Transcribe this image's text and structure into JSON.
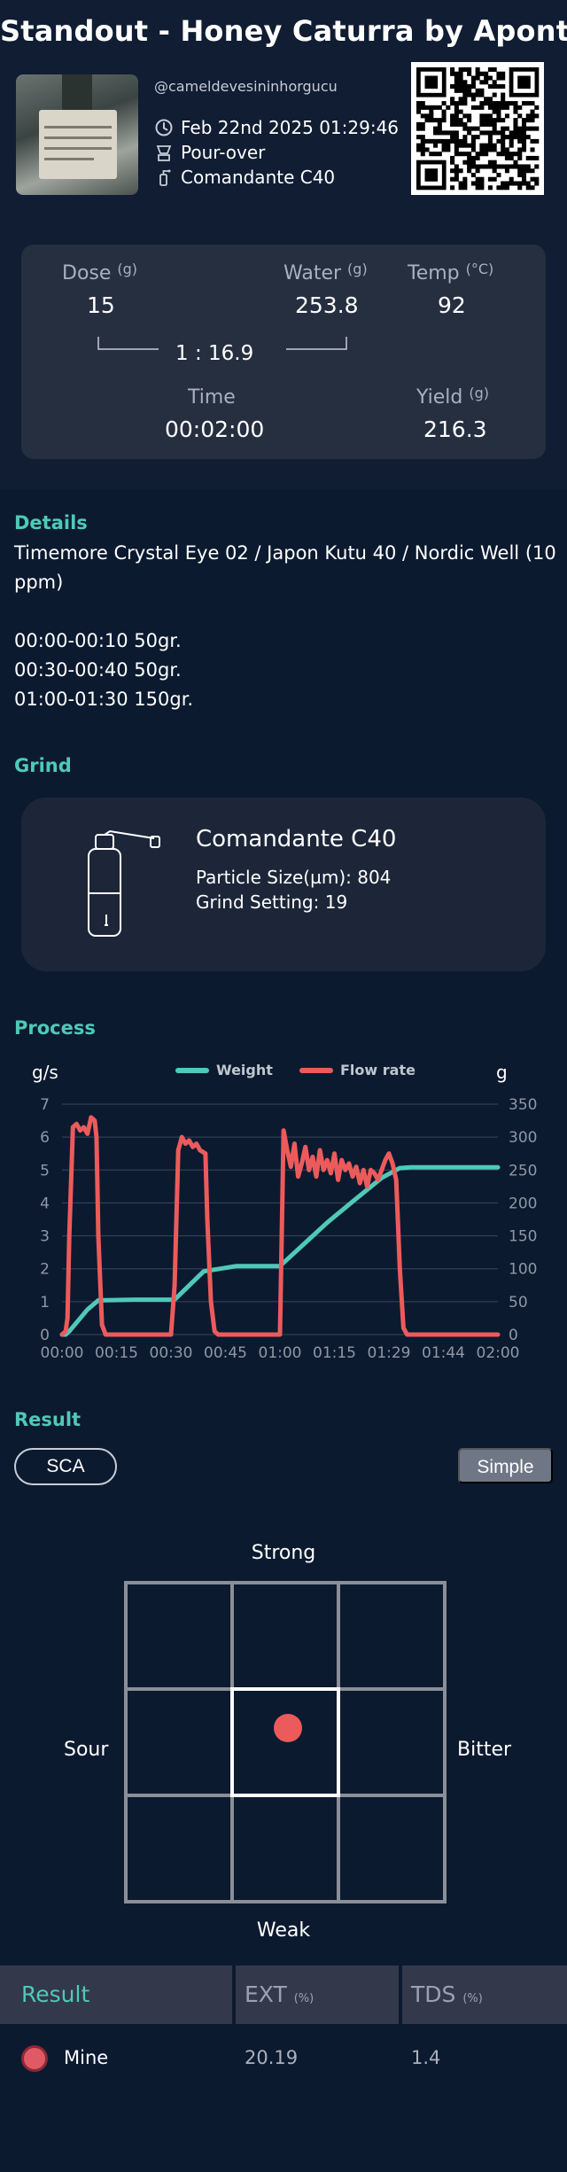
{
  "header": {
    "title": "Standout - Honey Caturra by Aponte",
    "username": "@cameldevesininhorgucu",
    "datetime": "Feb 22nd 2025 01:29:46",
    "method": "Pour-over",
    "grinder": "Comandante C40"
  },
  "recipe": {
    "dose_label": "Dose",
    "dose_unit": "(g)",
    "dose_value": "15",
    "water_label": "Water",
    "water_unit": "(g)",
    "water_value": "253.8",
    "temp_label": "Temp",
    "temp_unit": "(°C)",
    "temp_value": "92",
    "ratio": "1 : 16.9",
    "time_label": "Time",
    "time_value": "00:02:00",
    "yield_label": "Yield",
    "yield_unit": "(g)",
    "yield_value": "216.3"
  },
  "details": {
    "title": "Details",
    "text": "Timemore Crystal Eye 02 / Japon Kutu 40 / Nordic Well (10 ppm)\n\n00:00-00:10 50gr.\n00:30-00:40 50gr.\n01:00-01:30 150gr."
  },
  "grind": {
    "title": "Grind",
    "name": "Comandante C40",
    "particle_size": "Particle Size(µm): 804",
    "grind_setting": "Grind Setting: 19"
  },
  "process": {
    "title": "Process",
    "chart_data": {
      "type": "line",
      "left_axis_label": "g/s",
      "right_axis_label": "g",
      "left_ticks": [
        "0",
        "1",
        "2",
        "3",
        "4",
        "5",
        "6",
        "7"
      ],
      "right_ticks": [
        "0",
        "50",
        "100",
        "150",
        "200",
        "250",
        "300",
        "350"
      ],
      "x_ticks": [
        "00:00",
        "00:15",
        "00:30",
        "00:45",
        "01:00",
        "01:15",
        "01:29",
        "01:44",
        "02:00"
      ],
      "ylim_left": [
        0,
        7
      ],
      "ylim_right": [
        0,
        350
      ],
      "xlim_seconds": [
        0,
        120
      ],
      "grid": true,
      "legend_position": "top-center",
      "series": [
        {
          "name": "Weight",
          "axis": "right",
          "color": "#4fc9b8",
          "x": [
            0,
            1,
            2,
            7,
            10,
            20,
            31,
            39,
            48,
            55,
            60,
            73,
            80,
            88,
            93,
            96,
            100,
            105,
            110,
            115,
            120
          ],
          "y": [
            0,
            0,
            5,
            38,
            52,
            53,
            53,
            96,
            104,
            104,
            104,
            170,
            202,
            238,
            253,
            254,
            254,
            254,
            254,
            254,
            254
          ]
        },
        {
          "name": "Flow rate",
          "axis": "left",
          "color": "#ec5b5b",
          "x": [
            0,
            1,
            1.5,
            2,
            3,
            4,
            5,
            6,
            7,
            8,
            9,
            9.5,
            10,
            11,
            12,
            30,
            31,
            32,
            33,
            34,
            35,
            36,
            37,
            38,
            39.5,
            40,
            41,
            42,
            43,
            60,
            60.5,
            61,
            62,
            63,
            64,
            65,
            66,
            67,
            68,
            69,
            70,
            71,
            72,
            73,
            74,
            75,
            76,
            77,
            78,
            79,
            80,
            81,
            82,
            83,
            84,
            85,
            86,
            87,
            88,
            89,
            90,
            91,
            92,
            93,
            94,
            95,
            120
          ],
          "y": [
            0,
            0.1,
            0.5,
            3.0,
            6.3,
            6.4,
            6.2,
            6.3,
            6.1,
            6.6,
            6.5,
            6.0,
            3.0,
            0.3,
            0,
            0,
            1.5,
            5.6,
            6.0,
            5.8,
            5.9,
            5.7,
            5.8,
            5.6,
            5.5,
            3.5,
            1.0,
            0.1,
            0,
            0,
            3.0,
            6.2,
            5.6,
            5.1,
            5.8,
            4.8,
            5.2,
            5.7,
            5.0,
            5.4,
            4.8,
            5.6,
            5.0,
            5.3,
            4.9,
            5.5,
            4.7,
            5.3,
            5.0,
            5.2,
            4.8,
            5.1,
            4.6,
            5.0,
            4.5,
            5.0,
            4.9,
            4.7,
            5.0,
            5.3,
            5.5,
            5.2,
            4.7,
            2.0,
            0.2,
            0,
            0
          ]
        }
      ]
    }
  },
  "result": {
    "title": "Result",
    "sca_label": "SCA",
    "simple_label": "Simple",
    "axis_top": "Strong",
    "axis_bottom": "Weak",
    "axis_left": "Sour",
    "axis_right": "Bitter",
    "marker_color": "#ec5b5b",
    "table": {
      "col_result": "Result",
      "col_ext": "EXT",
      "col_ext_unit": "(%)",
      "col_tds": "TDS",
      "col_tds_unit": "(%)",
      "rows": [
        {
          "name": "Mine",
          "ext": "20.19",
          "tds": "1.4",
          "color": "#e05a66"
        }
      ]
    }
  }
}
